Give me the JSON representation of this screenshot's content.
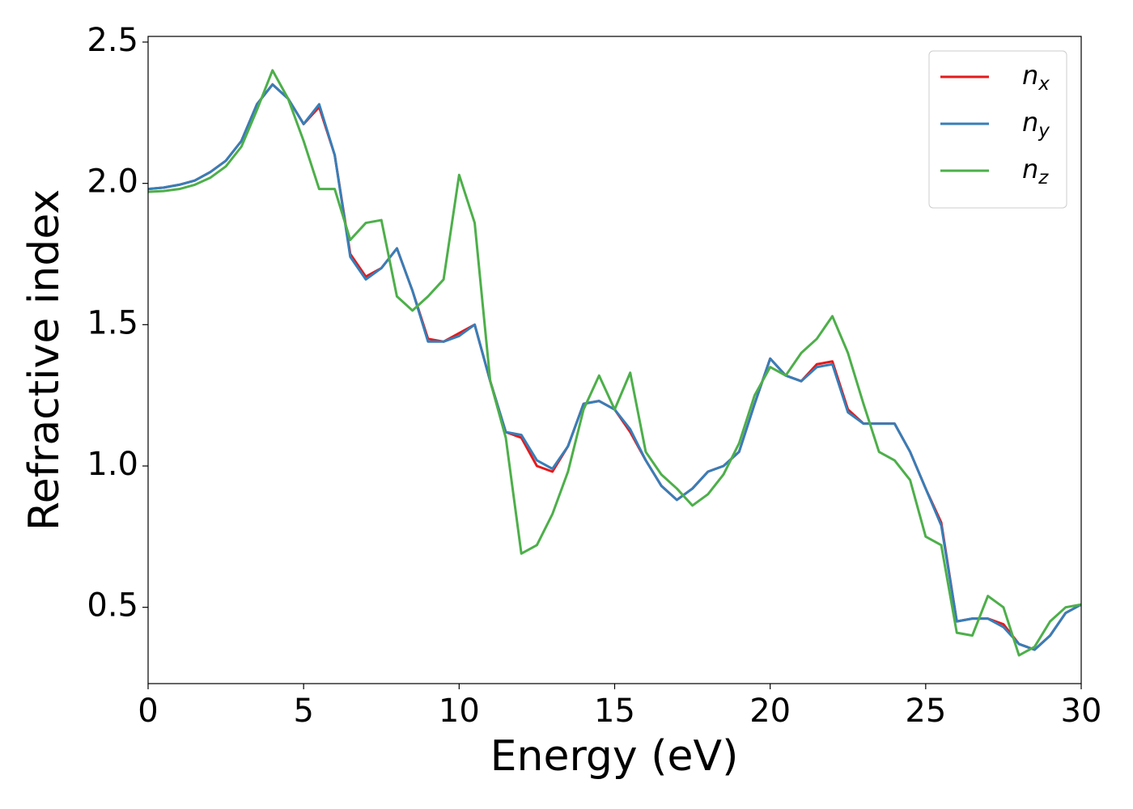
{
  "chart_data": {
    "type": "line",
    "x_label": "Energy (eV)",
    "y_label": "Refractive index",
    "x": [
      0,
      0.5,
      1,
      1.5,
      2,
      2.5,
      3,
      3.5,
      4,
      4.5,
      5,
      5.5,
      6,
      6.5,
      7,
      7.5,
      8,
      8.5,
      9,
      9.5,
      10,
      10.5,
      11,
      11.5,
      12,
      12.5,
      13,
      13.5,
      14,
      14.5,
      15,
      15.5,
      16,
      16.5,
      17,
      17.5,
      18,
      18.5,
      19,
      19.5,
      20,
      20.5,
      21,
      21.5,
      22,
      22.5,
      23,
      23.5,
      24,
      24.5,
      25,
      25.5,
      26,
      26.5,
      27,
      27.5,
      28,
      28.5,
      29,
      29.5,
      30
    ],
    "series": [
      {
        "name": "n_x",
        "color": "#e41a1c",
        "values": [
          1.98,
          1.985,
          1.995,
          2.01,
          2.04,
          2.08,
          2.15,
          2.28,
          2.35,
          2.3,
          2.21,
          2.27,
          2.1,
          1.75,
          1.67,
          1.7,
          1.77,
          1.62,
          1.45,
          1.44,
          1.47,
          1.5,
          1.3,
          1.12,
          1.1,
          1.0,
          0.98,
          1.07,
          1.22,
          1.23,
          1.2,
          1.12,
          1.02,
          0.93,
          0.88,
          0.92,
          0.98,
          1.0,
          1.05,
          1.22,
          1.38,
          1.32,
          1.3,
          1.36,
          1.37,
          1.2,
          1.15,
          1.15,
          1.15,
          1.05,
          0.92,
          0.8,
          0.45,
          0.46,
          0.46,
          0.44,
          0.37,
          0.35,
          0.4,
          0.48,
          0.51
        ]
      },
      {
        "name": "n_y",
        "color": "#377eb8",
        "values": [
          1.98,
          1.985,
          1.995,
          2.01,
          2.04,
          2.08,
          2.15,
          2.28,
          2.35,
          2.3,
          2.21,
          2.28,
          2.1,
          1.74,
          1.66,
          1.7,
          1.77,
          1.62,
          1.44,
          1.44,
          1.46,
          1.5,
          1.3,
          1.12,
          1.11,
          1.02,
          0.99,
          1.07,
          1.22,
          1.23,
          1.2,
          1.13,
          1.02,
          0.93,
          0.88,
          0.92,
          0.98,
          1.0,
          1.05,
          1.22,
          1.38,
          1.32,
          1.3,
          1.35,
          1.36,
          1.19,
          1.15,
          1.15,
          1.15,
          1.05,
          0.92,
          0.79,
          0.45,
          0.46,
          0.46,
          0.43,
          0.37,
          0.35,
          0.4,
          0.48,
          0.51
        ]
      },
      {
        "name": "n_z",
        "color": "#4daf4a",
        "values": [
          1.97,
          1.973,
          1.98,
          1.995,
          2.02,
          2.06,
          2.13,
          2.26,
          2.4,
          2.3,
          2.15,
          1.98,
          1.98,
          1.8,
          1.86,
          1.87,
          1.6,
          1.55,
          1.6,
          1.66,
          2.03,
          1.86,
          1.3,
          1.1,
          0.69,
          0.72,
          0.83,
          0.98,
          1.2,
          1.32,
          1.2,
          1.33,
          1.05,
          0.97,
          0.92,
          0.86,
          0.9,
          0.97,
          1.08,
          1.25,
          1.35,
          1.32,
          1.4,
          1.45,
          1.53,
          1.4,
          1.22,
          1.05,
          1.02,
          0.95,
          0.75,
          0.72,
          0.41,
          0.4,
          0.54,
          0.5,
          0.33,
          0.36,
          0.45,
          0.5,
          0.51
        ]
      }
    ],
    "xlim": [
      0,
      30
    ],
    "xticks": [
      0,
      5,
      10,
      15,
      20,
      25,
      30
    ],
    "ylim": [
      0.23,
      2.52
    ],
    "yticks": [
      {
        "value": 0.5,
        "label": "0.5"
      },
      {
        "value": 1.0,
        "label": "1.0"
      },
      {
        "value": 1.5,
        "label": "1.5"
      },
      {
        "value": 2.0,
        "label": "2.0"
      },
      {
        "value": 2.5,
        "label": "2.5"
      }
    ],
    "legend": "upper right",
    "grid": false
  }
}
